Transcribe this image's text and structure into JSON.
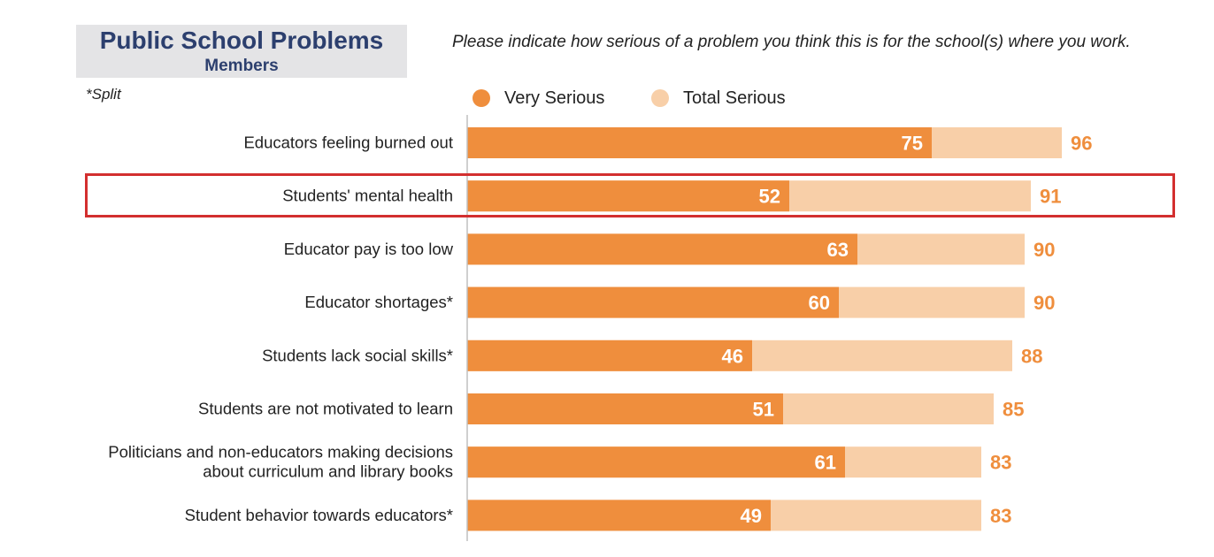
{
  "header": {
    "title": "Public School Problems",
    "subtitle": "Members",
    "note": "*Split",
    "question": "Please indicate how serious of a problem you think this is for the school(s) where you work."
  },
  "legend": [
    {
      "label": "Very Serious",
      "color": "#ef8e3d"
    },
    {
      "label": "Total Serious",
      "color": "#f8cfa8"
    }
  ],
  "highlighted_category": "Students' mental health",
  "chart_data": {
    "type": "bar",
    "orientation": "horizontal",
    "title": "Public School Problems",
    "subtitle": "Members",
    "categories": [
      [
        "Educators feeling burned out"
      ],
      [
        "Students' mental health"
      ],
      [
        "Educator pay is too low"
      ],
      [
        "Educator shortages*"
      ],
      [
        "Students lack social skills*"
      ],
      [
        "Students are not motivated to learn"
      ],
      [
        "Politicians and non-educators making decisions",
        "about curriculum and library books"
      ],
      [
        "Student behavior towards educators*"
      ]
    ],
    "series": [
      {
        "name": "Very Serious",
        "color": "#ef8e3d",
        "values": [
          75,
          52,
          63,
          60,
          46,
          51,
          61,
          49
        ]
      },
      {
        "name": "Total Serious",
        "color": "#f8cfa8",
        "values": [
          96,
          91,
          90,
          90,
          88,
          85,
          83,
          83
        ]
      }
    ],
    "xlim": [
      0,
      100
    ],
    "grid": false,
    "legend_position": "top",
    "label_colors": {
      "inside": "#ffffff",
      "outside": "#ef8e3d"
    }
  }
}
